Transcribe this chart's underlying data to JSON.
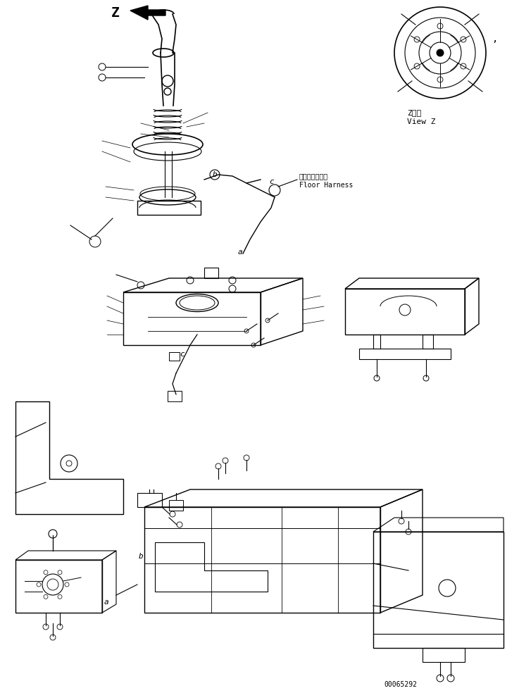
{
  "background_color": "#ffffff",
  "line_color": "#000000",
  "text_color": "#000000",
  "part_number": "00065292",
  "view_label_jp": "Z　視",
  "view_label_en": "View Z",
  "floor_harness_jp": "フロアハーネス",
  "floor_harness_en": "Floor Harness",
  "label_z": "Z",
  "label_b_top": "b",
  "label_c_top": "c",
  "label_a_top": "a",
  "label_c_mid": "c",
  "label_b_bot": "b",
  "label_a_bot": "a",
  "fig_width": 7.37,
  "fig_height": 9.84,
  "dpi": 100
}
